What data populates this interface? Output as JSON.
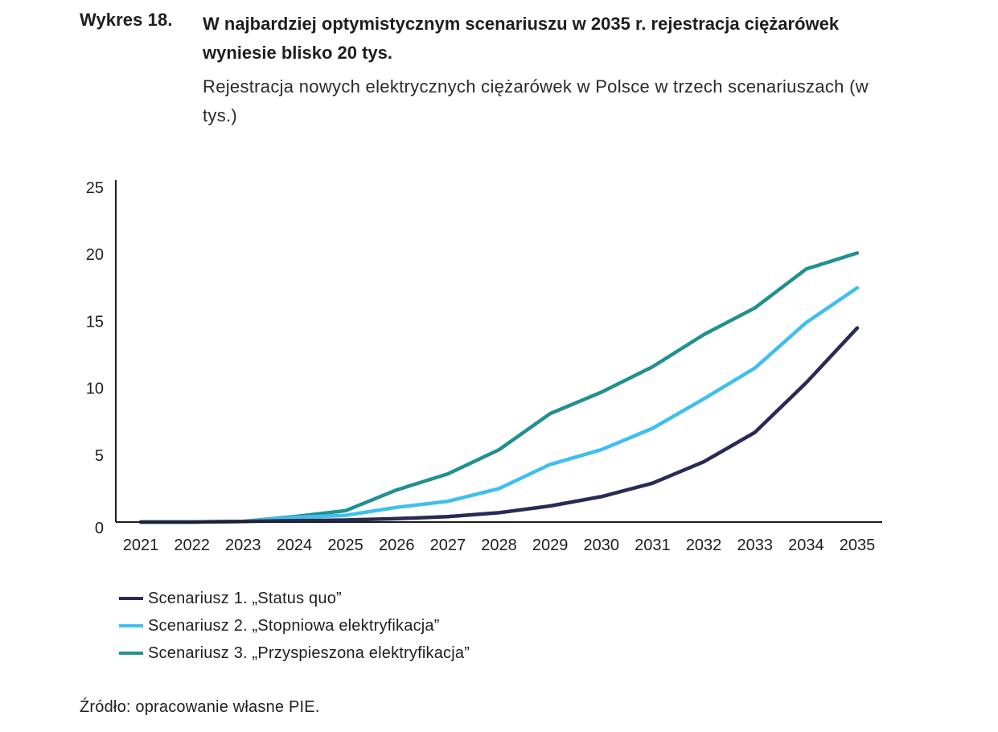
{
  "header": {
    "figure_label": "Wykres 18.",
    "title": "W najbardziej optymistycznym scenariuszu w 2035 r. rejestracja ciężarówek wyniesie blisko 20 tys.",
    "subtitle": "Rejestracja nowych elektrycznych ciężarówek w Polsce w trzech scenariuszach (w tys.)"
  },
  "footer": {
    "source": "Źródło: opracowanie własne PIE."
  },
  "chart_data": {
    "type": "line",
    "title": "W najbardziej optymistycznym scenariuszu w 2035 r. rejestracja ciężarówek wyniesie blisko 20 tys.",
    "subtitle": "Rejestracja nowych elektrycznych ciężarówek w Polsce w trzech scenariuszach (w tys.)",
    "xlabel": "",
    "ylabel": "",
    "categories": [
      "2021",
      "2022",
      "2023",
      "2024",
      "2025",
      "2026",
      "2027",
      "2028",
      "2029",
      "2030",
      "2031",
      "2032",
      "2033",
      "2034",
      "2035"
    ],
    "ylim": [
      0,
      25
    ],
    "yticks": [
      0,
      5,
      10,
      15,
      20,
      25
    ],
    "grid": false,
    "legend_position": "bottom-left",
    "series": [
      {
        "name": "Scenariusz 1. „Status quo”",
        "color": "#282b55",
        "values": [
          0.0,
          0.0,
          0.05,
          0.1,
          0.15,
          0.25,
          0.4,
          0.7,
          1.2,
          1.9,
          2.9,
          4.5,
          6.7,
          10.4,
          14.5
        ]
      },
      {
        "name": "Scenariusz 2. „Stopniowa elektryfikacja”",
        "color": "#40bfef",
        "values": [
          0.0,
          0.0,
          0.05,
          0.35,
          0.5,
          1.1,
          1.55,
          2.5,
          4.3,
          5.4,
          7.0,
          9.2,
          11.5,
          14.9,
          17.5
        ]
      },
      {
        "name": "Scenariusz 3. „Przyspieszona elektryfikacja”",
        "color": "#22908f",
        "values": [
          0.0,
          0.0,
          0.05,
          0.4,
          0.85,
          2.4,
          3.6,
          5.4,
          8.1,
          9.7,
          11.6,
          14.0,
          16.0,
          18.9,
          20.1
        ]
      }
    ]
  }
}
